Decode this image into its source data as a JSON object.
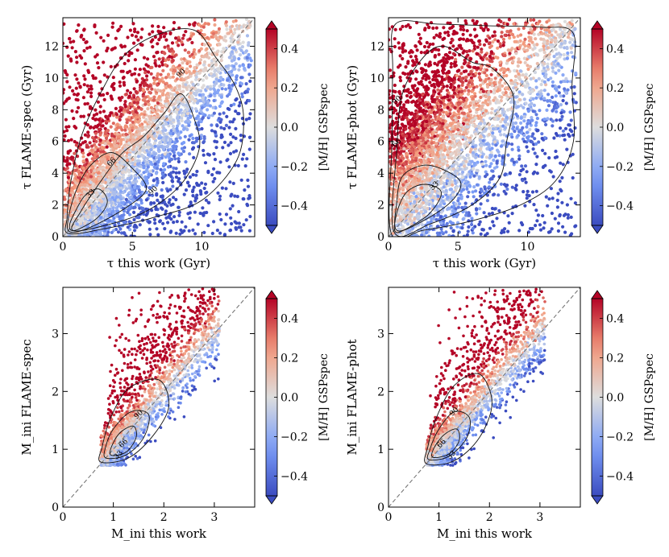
{
  "chart_data": [
    {
      "type": "scatter",
      "xlabel": "τ this work (Gyr)",
      "ylabel": "τ FLAME-spec (Gyr)",
      "xlim": [
        0,
        13.8
      ],
      "ylim": [
        0,
        13.8
      ],
      "xticks": [
        0,
        5,
        10
      ],
      "yticks": [
        0,
        2,
        4,
        6,
        8,
        10,
        12
      ],
      "colorbar": {
        "label": "[M/H] GSPspec",
        "ticks": [
          0.4,
          0.2,
          0.0,
          -0.2,
          -0.4
        ],
        "tick_labels": [
          "0.4",
          "0.2",
          "0.0",
          "−0.2",
          "−0.4"
        ],
        "range": [
          -0.5,
          0.5
        ],
        "colormap": "coolwarm"
      },
      "contours": [
        {
          "label": "33",
          "label_pos": [
            2.0,
            2.7
          ]
        },
        {
          "label": "66",
          "label_pos": [
            3.5,
            4.7
          ]
        },
        {
          "label": "90",
          "label_pos": [
            8.5,
            10.3
          ]
        },
        {
          "label": "90",
          "label_pos": [
            6.5,
            2.9
          ]
        }
      ],
      "one_to_one_line": true
    },
    {
      "type": "scatter",
      "xlabel": "τ this work (Gyr)",
      "ylabel": "τ FLAME-phot (Gyr)",
      "xlim": [
        0,
        13.8
      ],
      "ylim": [
        0,
        13.8
      ],
      "xticks": [
        0,
        5,
        10
      ],
      "yticks": [
        0,
        2,
        4,
        6,
        8,
        10,
        12
      ],
      "colorbar": {
        "label": "[M/H] GSPspec",
        "ticks": [
          0.4,
          0.2,
          0.0,
          -0.2,
          -0.4
        ],
        "tick_labels": [
          "0.4",
          "0.2",
          "0.0",
          "−0.2",
          "−0.4"
        ],
        "range": [
          -0.5,
          0.5
        ],
        "colormap": "coolwarm"
      },
      "contours": [
        {
          "label": "90",
          "label_pos": [
            0.6,
            8.6
          ]
        },
        {
          "label": "66",
          "label_pos": [
            0.6,
            5.9
          ]
        },
        {
          "label": "33",
          "label_pos": [
            3.3,
            3.2
          ]
        }
      ],
      "one_to_one_line": true
    },
    {
      "type": "scatter",
      "xlabel": "M_ini this work",
      "ylabel": "M_ini FLAME-spec",
      "xlim": [
        0,
        3.8
      ],
      "ylim": [
        0,
        3.8
      ],
      "xticks": [
        0,
        1,
        2,
        3
      ],
      "yticks": [
        0,
        1,
        2,
        3
      ],
      "colorbar": {
        "label": "[M/H] GSPspec",
        "ticks": [
          0.4,
          0.2,
          0.0,
          -0.2,
          -0.4
        ],
        "tick_labels": [
          "0.4",
          "0.2",
          "0.0",
          "−0.2",
          "−0.4"
        ],
        "range": [
          -0.5,
          0.5
        ],
        "colormap": "coolwarm"
      },
      "contours": [
        {
          "label": "90",
          "label_pos": [
            1.5,
            1.6
          ]
        },
        {
          "label": "66",
          "label_pos": [
            1.2,
            1.1
          ]
        },
        {
          "label": "33",
          "label_pos": [
            1.1,
            0.9
          ]
        }
      ],
      "one_to_one_line": true
    },
    {
      "type": "scatter",
      "xlabel": "M_ini this work",
      "ylabel": "M_ini FLAME-phot",
      "xlim": [
        0,
        3.8
      ],
      "ylim": [
        0,
        3.8
      ],
      "xticks": [
        0,
        1,
        2,
        3
      ],
      "yticks": [
        0,
        1,
        2,
        3
      ],
      "colorbar": {
        "label": "[M/H] GSPspec",
        "ticks": [
          0.4,
          0.2,
          0.0,
          -0.2,
          -0.4
        ],
        "tick_labels": [
          "0.4",
          "0.2",
          "0.0",
          "−0.2",
          "−0.4"
        ],
        "range": [
          -0.5,
          0.5
        ],
        "colormap": "coolwarm"
      },
      "contours": [
        {
          "label": "90",
          "label_pos": [
            1.3,
            1.65
          ]
        },
        {
          "label": "66",
          "label_pos": [
            1.05,
            1.1
          ]
        },
        {
          "label": "33",
          "label_pos": [
            1.25,
            0.9
          ]
        }
      ],
      "one_to_one_line": true
    }
  ]
}
